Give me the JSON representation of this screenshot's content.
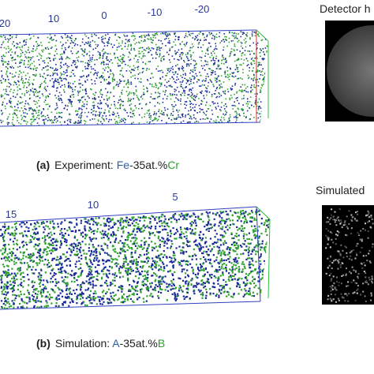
{
  "panel_a": {
    "axis_ticks": [
      "20",
      "10",
      "0",
      "-10",
      "-20"
    ],
    "image_title": "Detector h",
    "caption": {
      "label": "(a)",
      "text": "Experiment: ",
      "element1": "Fe",
      "middle": "-35at.%",
      "element2": "Cr"
    }
  },
  "panel_b": {
    "axis_ticks": [
      "15",
      "10",
      "5"
    ],
    "image_title": "Simulated",
    "caption": {
      "label": "(b)",
      "text": "Simulation: ",
      "element1": "A",
      "middle": "-35at.%",
      "element2": "B"
    }
  }
}
